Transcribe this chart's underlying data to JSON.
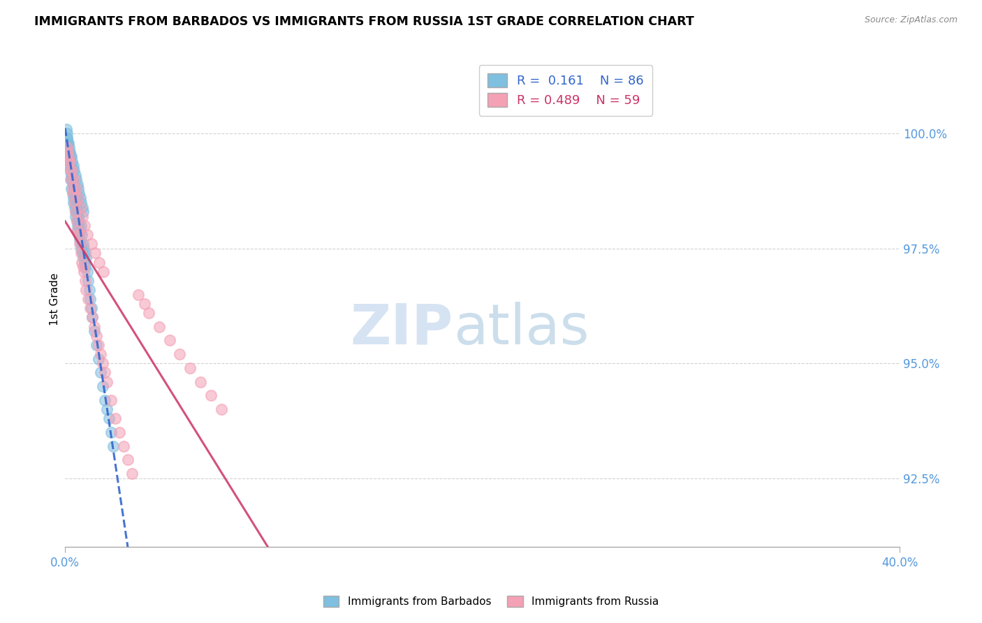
{
  "title": "IMMIGRANTS FROM BARBADOS VS IMMIGRANTS FROM RUSSIA 1ST GRADE CORRELATION CHART",
  "source": "Source: ZipAtlas.com",
  "ylabel": "1st Grade",
  "y_ticks": [
    92.5,
    95.0,
    97.5,
    100.0
  ],
  "x_range": [
    0.0,
    40.0
  ],
  "y_range": [
    91.0,
    101.8
  ],
  "blue_R": 0.161,
  "blue_N": 86,
  "pink_R": 0.489,
  "pink_N": 59,
  "blue_color": "#7fbfdf",
  "pink_color": "#f4a0b5",
  "blue_line_color": "#3366cc",
  "pink_line_color": "#cc3366",
  "tick_color": "#5599dd",
  "watermark_zip_color": "#c5d8ed",
  "watermark_atlas_color": "#9bbfd8",
  "blue_scatter_x": [
    0.05,
    0.08,
    0.1,
    0.1,
    0.12,
    0.15,
    0.15,
    0.18,
    0.2,
    0.2,
    0.22,
    0.25,
    0.25,
    0.28,
    0.3,
    0.3,
    0.32,
    0.35,
    0.35,
    0.38,
    0.4,
    0.4,
    0.42,
    0.45,
    0.45,
    0.48,
    0.5,
    0.5,
    0.52,
    0.55,
    0.55,
    0.58,
    0.6,
    0.6,
    0.62,
    0.65,
    0.65,
    0.68,
    0.7,
    0.72,
    0.75,
    0.75,
    0.78,
    0.8,
    0.82,
    0.85,
    0.88,
    0.9,
    0.92,
    0.95,
    0.98,
    1.0,
    1.05,
    1.1,
    1.15,
    1.2,
    1.25,
    1.3,
    1.4,
    1.5,
    1.6,
    1.7,
    1.8,
    1.9,
    2.0,
    2.1,
    2.2,
    2.3,
    0.05,
    0.08,
    0.12,
    0.18,
    0.22,
    0.28,
    0.32,
    0.38,
    0.42,
    0.48,
    0.52,
    0.58,
    0.62,
    0.68,
    0.72,
    0.78,
    0.82,
    0.88
  ],
  "blue_scatter_y": [
    99.8,
    100.0,
    99.9,
    99.6,
    99.7,
    99.5,
    99.8,
    99.4,
    99.6,
    99.3,
    99.2,
    99.5,
    99.0,
    99.3,
    99.1,
    98.8,
    99.0,
    98.7,
    99.2,
    98.6,
    98.9,
    98.5,
    98.8,
    98.4,
    98.7,
    98.3,
    98.5,
    98.2,
    98.4,
    98.1,
    98.6,
    98.0,
    98.3,
    97.9,
    98.2,
    98.1,
    97.8,
    98.0,
    97.7,
    97.9,
    97.6,
    98.0,
    97.5,
    97.8,
    97.4,
    97.6,
    97.3,
    97.5,
    97.2,
    97.4,
    97.1,
    97.3,
    97.0,
    96.8,
    96.6,
    96.4,
    96.2,
    96.0,
    95.7,
    95.4,
    95.1,
    94.8,
    94.5,
    94.2,
    94.0,
    93.8,
    93.5,
    93.2,
    100.1,
    99.9,
    99.8,
    99.7,
    99.6,
    99.5,
    99.4,
    99.3,
    99.2,
    99.1,
    99.0,
    98.9,
    98.8,
    98.7,
    98.6,
    98.5,
    98.4,
    98.3
  ],
  "pink_scatter_x": [
    0.1,
    0.15,
    0.2,
    0.25,
    0.3,
    0.35,
    0.4,
    0.45,
    0.5,
    0.55,
    0.6,
    0.65,
    0.7,
    0.75,
    0.8,
    0.85,
    0.9,
    0.95,
    1.0,
    1.1,
    1.2,
    1.3,
    1.4,
    1.5,
    1.6,
    1.7,
    1.8,
    1.9,
    2.0,
    2.2,
    2.4,
    2.6,
    2.8,
    3.0,
    3.2,
    3.5,
    3.8,
    4.0,
    4.5,
    5.0,
    5.5,
    6.0,
    6.5,
    7.0,
    7.5,
    0.12,
    0.22,
    0.32,
    0.42,
    0.52,
    0.62,
    0.72,
    0.82,
    0.92,
    1.05,
    1.25,
    1.45,
    1.65,
    1.85
  ],
  "pink_scatter_y": [
    99.7,
    99.5,
    99.4,
    99.2,
    99.0,
    98.8,
    98.7,
    98.5,
    98.3,
    98.1,
    97.9,
    97.8,
    97.6,
    97.4,
    97.2,
    97.1,
    97.0,
    96.8,
    96.6,
    96.4,
    96.2,
    96.0,
    95.8,
    95.6,
    95.4,
    95.2,
    95.0,
    94.8,
    94.6,
    94.2,
    93.8,
    93.5,
    93.2,
    92.9,
    92.6,
    96.5,
    96.3,
    96.1,
    95.8,
    95.5,
    95.2,
    94.9,
    94.6,
    94.3,
    94.0,
    99.6,
    99.4,
    99.2,
    99.0,
    98.8,
    98.6,
    98.4,
    98.2,
    98.0,
    97.8,
    97.6,
    97.4,
    97.2,
    97.0
  ]
}
